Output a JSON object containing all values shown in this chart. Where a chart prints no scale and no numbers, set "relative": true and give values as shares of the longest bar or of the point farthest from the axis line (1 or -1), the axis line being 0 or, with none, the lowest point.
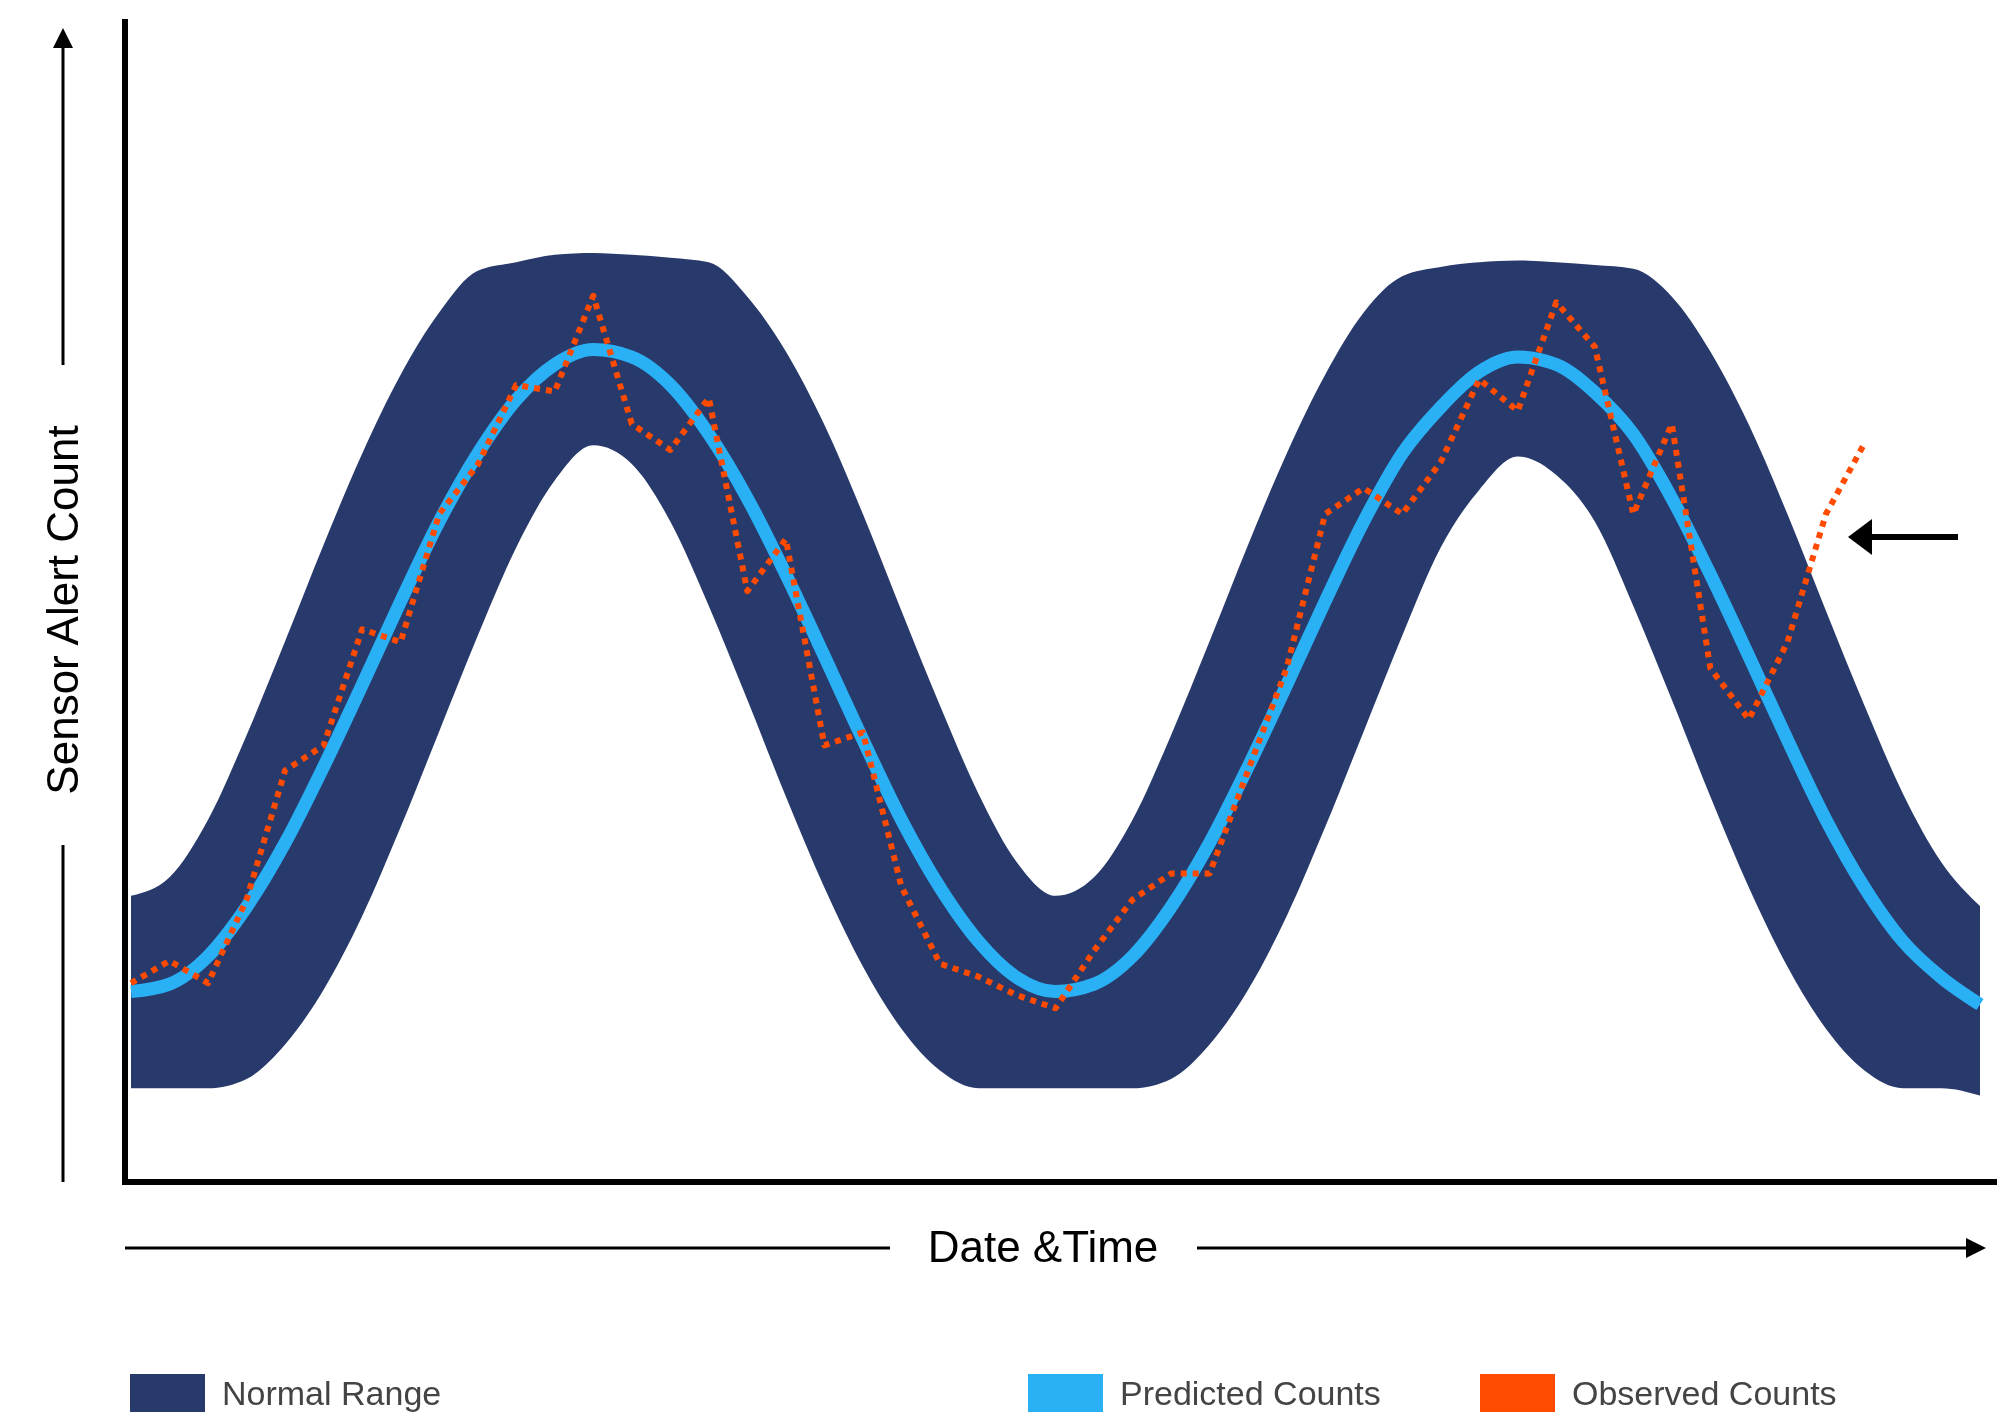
{
  "chart_data": {
    "type": "line",
    "relative": true,
    "xlabel": "Date &Time",
    "ylabel": "Sensor Alert Count",
    "legend": "bottom",
    "categories": [
      null,
      null,
      null,
      null,
      null,
      null,
      null,
      null,
      null,
      null,
      null,
      null,
      null,
      null,
      null,
      null,
      null,
      null,
      null,
      null,
      null,
      null,
      null,
      null,
      null,
      null,
      null,
      null,
      null,
      null,
      null,
      null,
      null,
      null,
      null,
      null,
      null,
      null,
      null,
      null,
      null,
      null,
      null,
      null,
      null,
      null,
      null,
      null,
      null
    ],
    "series": [
      {
        "name": "Normal Range",
        "type": "area",
        "color": "#283a6b",
        "values": [
          0.308,
          0.328,
          0.39,
          0.481,
          0.582,
          0.686,
          0.784,
          0.869,
          0.936,
          0.981,
          0.99,
          0.998,
          1.0,
          0.998,
          0.995,
          0.99,
          0.953,
          0.894,
          0.815,
          0.719,
          0.615,
          0.513,
          0.418,
          0.344,
          0.308,
          0.328,
          0.39,
          0.481,
          0.582,
          0.686,
          0.784,
          0.869,
          0.936,
          0.975,
          0.985,
          0.99,
          0.992,
          0.99,
          0.987,
          0.983,
          0.953,
          0.894,
          0.815,
          0.719,
          0.615,
          0.513,
          0.418,
          0.344,
          0.297
        ]
      },
      {
        "type": "area",
        "color": "#ffffff",
        "values": [
          0.101,
          0.101,
          0.101,
          0.111,
          0.148,
          0.207,
          0.286,
          0.382,
          0.485,
          0.588,
          0.683,
          0.755,
          0.793,
          0.773,
          0.711,
          0.62,
          0.519,
          0.415,
          0.317,
          0.232,
          0.165,
          0.12,
          0.101,
          0.101,
          0.101,
          0.101,
          0.101,
          0.111,
          0.148,
          0.207,
          0.286,
          0.382,
          0.485,
          0.588,
          0.683,
          0.745,
          0.781,
          0.761,
          0.711,
          0.62,
          0.519,
          0.415,
          0.317,
          0.232,
          0.165,
          0.12,
          0.101,
          0.101,
          0.093
        ]
      },
      {
        "name": "Predicted Counts",
        "type": "line",
        "color": "#29b0f5",
        "values": [
          0.205,
          0.213,
          0.243,
          0.296,
          0.365,
          0.447,
          0.535,
          0.625,
          0.711,
          0.784,
          0.842,
          0.88,
          0.896,
          0.888,
          0.858,
          0.805,
          0.736,
          0.654,
          0.566,
          0.476,
          0.39,
          0.317,
          0.259,
          0.22,
          0.205,
          0.213,
          0.243,
          0.296,
          0.365,
          0.447,
          0.535,
          0.625,
          0.711,
          0.784,
          0.834,
          0.872,
          0.888,
          0.88,
          0.85,
          0.805,
          0.736,
          0.654,
          0.566,
          0.476,
          0.39,
          0.317,
          0.259,
          0.22,
          0.191
        ]
      },
      {
        "name": "Observed Counts",
        "color": "#ff4a00",
        "line_style": "dotted",
        "values": [
          0.214,
          0.238,
          0.214,
          0.304,
          0.443,
          0.47,
          0.595,
          0.581,
          0.719,
          0.772,
          0.858,
          0.851,
          0.954,
          0.816,
          0.788,
          0.844,
          0.636,
          0.692,
          0.47,
          0.484,
          0.318,
          0.235,
          0.221,
          0.201,
          0.187,
          0.249,
          0.304,
          0.332,
          0.332,
          0.443,
          0.553,
          0.719,
          0.747,
          0.719,
          0.775,
          0.864,
          0.83,
          0.947,
          0.899,
          0.719,
          0.816,
          0.553,
          0.498,
          0.581,
          0.719,
          0.795,
          null,
          null,
          null
        ]
      }
    ]
  }
}
